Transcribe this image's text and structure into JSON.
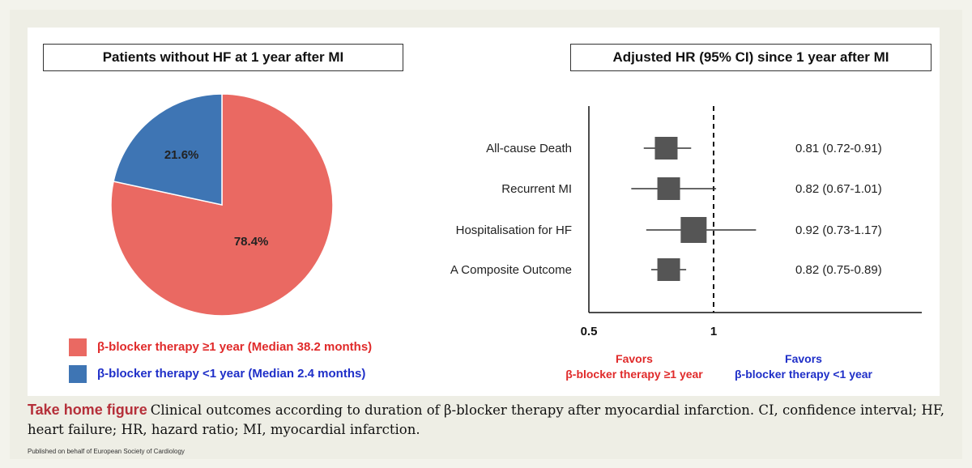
{
  "pie_title": "Patients without HF at 1 year after MI",
  "forest_title": "Adjusted HR (95% CI) since 1 year after MI",
  "legend": [
    {
      "label": "β-blocker therapy ≥1 year (Median 38.2 months)",
      "color": "#ea6962",
      "text_color": "#e02a2a"
    },
    {
      "label": "β-blocker therapy <1 year (Median 2.4 months)",
      "color": "#3e75b4",
      "text_color": "#1f2fc8"
    }
  ],
  "favors_left": {
    "line1": "Favors",
    "line2": "β-blocker therapy ≥1 year",
    "color": "#e02a2a"
  },
  "favors_right": {
    "line1": "Favors",
    "line2": "β-blocker therapy <1 year",
    "color": "#1f2fc8"
  },
  "caption": {
    "lead": "Take home figure",
    "text": "Clinical outcomes according to duration of β-blocker therapy after myocardial infarction. CI, confidence interval; HF, heart failure; HR, hazard ratio; MI, myocardial infarction."
  },
  "footer": "Published on behalf of European Society of Cardiology",
  "chart_data": [
    {
      "type": "pie",
      "title": "Patients without HF at 1 year after MI",
      "slices": [
        {
          "label": "β-blocker therapy ≥1 year (Median 38.2 months)",
          "value": 78.4,
          "display": "78.4%",
          "color": "#ea6962"
        },
        {
          "label": "β-blocker therapy <1 year (Median 2.4 months)",
          "value": 21.6,
          "display": "21.6%",
          "color": "#3e75b4"
        }
      ]
    },
    {
      "type": "forest",
      "title": "Adjusted HR (95% CI) since 1 year after MI",
      "xticks": [
        {
          "value": 0.5,
          "label": "0.5"
        },
        {
          "value": 1,
          "label": "1"
        }
      ],
      "xlim": [
        0.5,
        1.4
      ],
      "reference_line": 1,
      "rows": [
        {
          "label": "All-cause Death",
          "hr": 0.81,
          "lo": 0.72,
          "hi": 0.91,
          "text": "0.81 (0.72-0.91)"
        },
        {
          "label": "Recurrent MI",
          "hr": 0.82,
          "lo": 0.67,
          "hi": 1.01,
          "text": "0.82 (0.67-1.01)"
        },
        {
          "label": "Hospitalisation for HF",
          "hr": 0.92,
          "lo": 0.73,
          "hi": 1.17,
          "text": "0.92 (0.73-1.17)"
        },
        {
          "label": "A Composite Outcome",
          "hr": 0.82,
          "lo": 0.75,
          "hi": 0.89,
          "text": "0.82 (0.75-0.89)"
        }
      ]
    }
  ]
}
